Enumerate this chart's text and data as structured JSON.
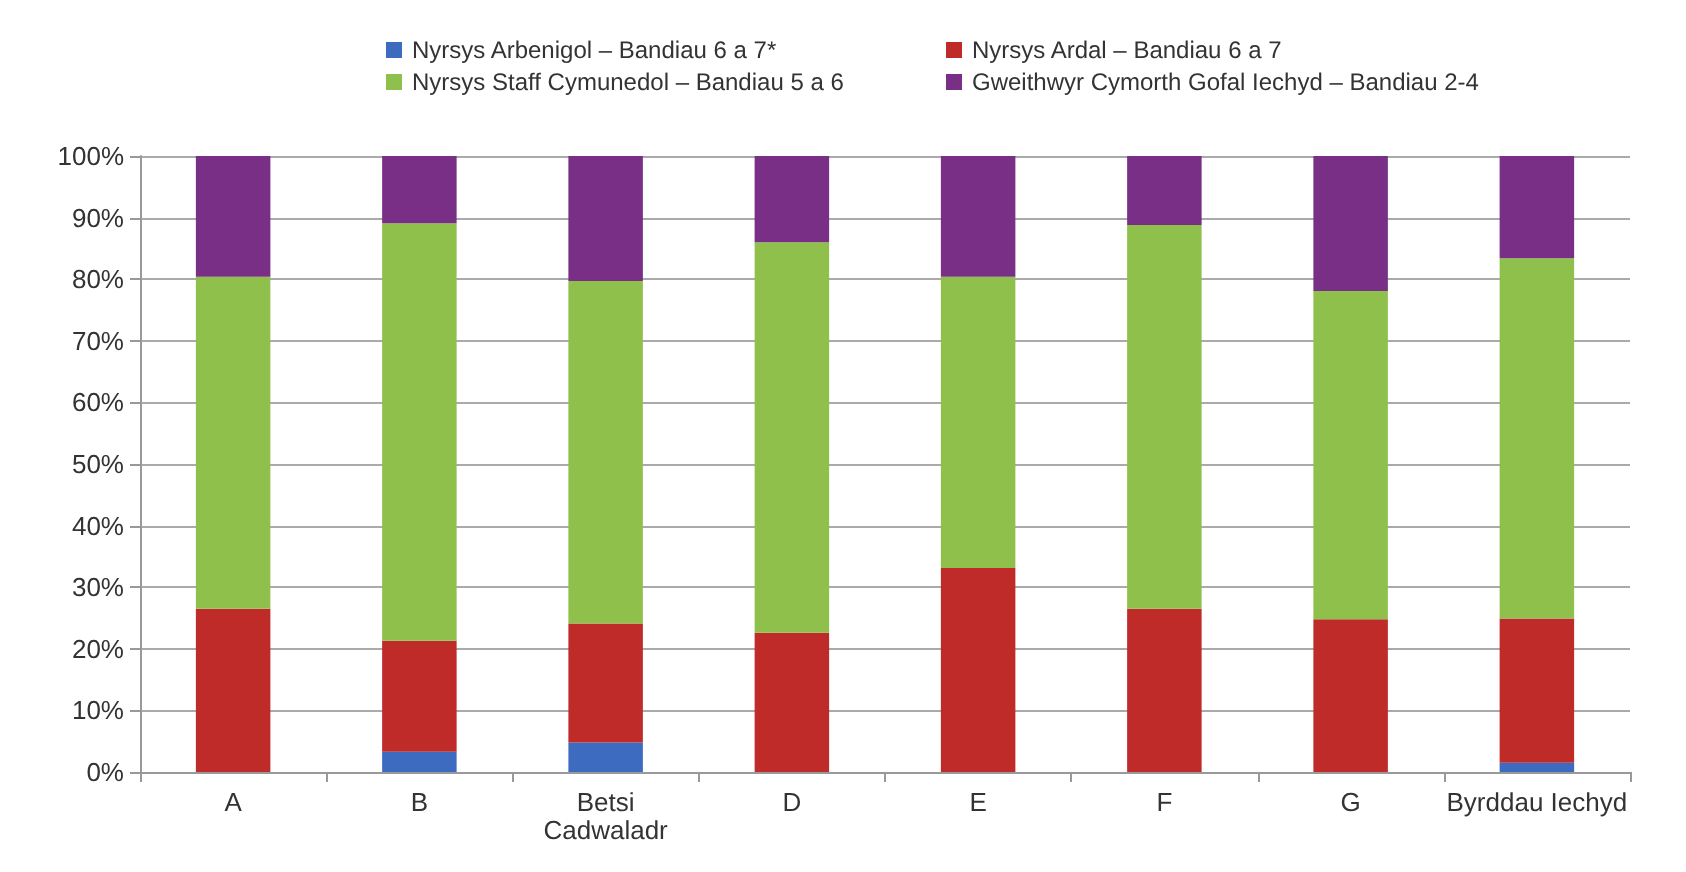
{
  "chart_data": {
    "type": "bar",
    "stacked": true,
    "categories": [
      "A",
      "B",
      "Betsi\nCadwaladr",
      "D",
      "E",
      "F",
      "G",
      "Byrddau Iechyd"
    ],
    "series": [
      {
        "name": "Nyrsys Arbenigol – Bandiau 6 a 7*",
        "color": "#3d6bbf",
        "values": [
          0,
          3.3,
          4.8,
          0,
          0,
          0,
          0,
          1.5
        ]
      },
      {
        "name": "Nyrsys Ardal – Bandiau 6 a 7",
        "color": "#bf2b28",
        "values": [
          26.5,
          18,
          19.3,
          22.6,
          33.1,
          26.5,
          24.8,
          23.4
        ]
      },
      {
        "name": "Nyrsys Staff Cymunedol – Bandiau 5 a 6",
        "color": "#8fc04b",
        "values": [
          53.9,
          67.8,
          55.6,
          63.4,
          47.3,
          62.3,
          53.3,
          58.5
        ]
      },
      {
        "name": "Gweithwyr Cymorth Gofal Iechyd – Bandiau 2-4",
        "color": "#7a2f86",
        "values": [
          19.6,
          10.9,
          20.3,
          14,
          19.6,
          11.2,
          21.9,
          16.6
        ]
      }
    ],
    "ylim": [
      0,
      100
    ],
    "yticks": [
      {
        "value": 0,
        "label": "0%"
      },
      {
        "value": 10,
        "label": "10%"
      },
      {
        "value": 20,
        "label": "20%"
      },
      {
        "value": 30,
        "label": "30%"
      },
      {
        "value": 40,
        "label": "40%"
      },
      {
        "value": 50,
        "label": "50%"
      },
      {
        "value": 60,
        "label": "60%"
      },
      {
        "value": 70,
        "label": "70%"
      },
      {
        "value": 80,
        "label": "80%"
      },
      {
        "value": 90,
        "label": "90%"
      },
      {
        "value": 100,
        "label": "100%"
      }
    ],
    "grid": "y",
    "legend": "top"
  }
}
